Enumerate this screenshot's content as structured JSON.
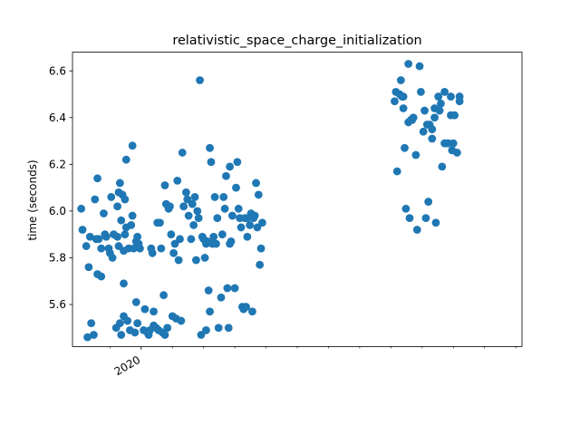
{
  "chart_data": {
    "type": "scatter",
    "title": "relativistic_space_charge_initialization",
    "xlabel": "",
    "ylabel": "time (seconds)",
    "x_major_ticks": [
      {
        "x": 2020.0,
        "label": "2020"
      }
    ],
    "x_minor_ticks": [
      2019.75,
      2020.25,
      2020.5,
      2020.75,
      2021.0,
      2021.25,
      2021.5,
      2021.75,
      2022.0,
      2022.25,
      2022.5,
      2022.75,
      2023.0
    ],
    "xlim": [
      2019.45,
      2023.05
    ],
    "ylim": [
      5.42,
      6.68
    ],
    "yticks": [
      5.6,
      5.8,
      6.0,
      6.2,
      6.4,
      6.6
    ],
    "ytick_labels": [
      "5.6",
      "5.8",
      "6.0",
      "6.2",
      "6.4",
      "6.6"
    ],
    "marker_color": "#1f77b4",
    "grid": false,
    "points": [
      [
        2019.52,
        6.01
      ],
      [
        2019.53,
        5.92
      ],
      [
        2019.56,
        5.85
      ],
      [
        2019.57,
        5.46
      ],
      [
        2019.58,
        5.76
      ],
      [
        2019.59,
        5.89
      ],
      [
        2019.6,
        5.52
      ],
      [
        2019.62,
        5.47
      ],
      [
        2019.63,
        6.05
      ],
      [
        2019.64,
        5.88
      ],
      [
        2019.65,
        5.73
      ],
      [
        2019.65,
        6.14
      ],
      [
        2019.66,
        5.88
      ],
      [
        2019.68,
        5.84
      ],
      [
        2019.68,
        5.72
      ],
      [
        2019.7,
        5.99
      ],
      [
        2019.71,
        5.9
      ],
      [
        2019.72,
        5.89
      ],
      [
        2019.74,
        5.84
      ],
      [
        2019.75,
        5.82
      ],
      [
        2019.76,
        6.06
      ],
      [
        2019.77,
        5.8
      ],
      [
        2019.78,
        5.9
      ],
      [
        2019.8,
        5.5
      ],
      [
        2019.81,
        6.02
      ],
      [
        2019.81,
        5.89
      ],
      [
        2019.82,
        6.08
      ],
      [
        2019.82,
        5.85
      ],
      [
        2019.83,
        5.52
      ],
      [
        2019.83,
        6.12
      ],
      [
        2019.84,
        5.47
      ],
      [
        2019.84,
        5.96
      ],
      [
        2019.85,
        6.07
      ],
      [
        2019.86,
        5.83
      ],
      [
        2019.86,
        5.55
      ],
      [
        2019.86,
        5.69
      ],
      [
        2019.87,
        6.05
      ],
      [
        2019.87,
        5.9
      ],
      [
        2019.88,
        6.22
      ],
      [
        2019.88,
        5.93
      ],
      [
        2019.89,
        5.53
      ],
      [
        2019.9,
        5.84
      ],
      [
        2019.91,
        5.49
      ],
      [
        2019.92,
        5.94
      ],
      [
        2019.93,
        6.28
      ],
      [
        2019.93,
        5.98
      ],
      [
        2019.94,
        5.84
      ],
      [
        2019.95,
        5.48
      ],
      [
        2019.96,
        5.61
      ],
      [
        2019.96,
        5.87
      ],
      [
        2019.97,
        5.52
      ],
      [
        2019.97,
        5.89
      ],
      [
        2019.98,
        5.86
      ],
      [
        2019.99,
        5.84
      ],
      [
        2020.02,
        5.49
      ],
      [
        2020.03,
        5.58
      ],
      [
        2020.05,
        5.48
      ],
      [
        2020.06,
        5.47
      ],
      [
        2020.07,
        5.49
      ],
      [
        2020.08,
        5.84
      ],
      [
        2020.09,
        5.82
      ],
      [
        2020.1,
        5.51
      ],
      [
        2020.1,
        5.57
      ],
      [
        2020.12,
        5.5
      ],
      [
        2020.13,
        5.95
      ],
      [
        2020.14,
        5.49
      ],
      [
        2020.15,
        5.95
      ],
      [
        2020.16,
        5.84
      ],
      [
        2020.17,
        5.48
      ],
      [
        2020.18,
        5.64
      ],
      [
        2020.19,
        6.11
      ],
      [
        2020.19,
        5.47
      ],
      [
        2020.2,
        6.03
      ],
      [
        2020.21,
        5.5
      ],
      [
        2020.22,
        6.01
      ],
      [
        2020.23,
        6.02
      ],
      [
        2020.24,
        5.9
      ],
      [
        2020.25,
        5.55
      ],
      [
        2020.26,
        5.82
      ],
      [
        2020.27,
        5.86
      ],
      [
        2020.28,
        5.54
      ],
      [
        2020.29,
        6.13
      ],
      [
        2020.3,
        5.79
      ],
      [
        2020.31,
        5.88
      ],
      [
        2020.32,
        5.53
      ],
      [
        2020.33,
        6.25
      ],
      [
        2020.34,
        6.02
      ],
      [
        2020.36,
        6.08
      ],
      [
        2020.37,
        6.05
      ],
      [
        2020.38,
        5.98
      ],
      [
        2020.4,
        5.88
      ],
      [
        2020.41,
        6.03
      ],
      [
        2020.42,
        5.94
      ],
      [
        2020.43,
        6.06
      ],
      [
        2020.44,
        5.79
      ],
      [
        2020.45,
        6.0
      ],
      [
        2020.46,
        5.97
      ],
      [
        2020.47,
        6.56
      ],
      [
        2020.48,
        5.47
      ],
      [
        2020.49,
        5.89
      ],
      [
        2020.5,
        5.88
      ],
      [
        2020.51,
        5.8
      ],
      [
        2020.52,
        5.86
      ],
      [
        2020.52,
        5.49
      ],
      [
        2020.53,
        5.87
      ],
      [
        2020.54,
        5.66
      ],
      [
        2020.55,
        6.27
      ],
      [
        2020.55,
        5.57
      ],
      [
        2020.56,
        6.21
      ],
      [
        2020.57,
        5.86
      ],
      [
        2020.58,
        5.89
      ],
      [
        2020.59,
        6.06
      ],
      [
        2020.6,
        5.86
      ],
      [
        2020.61,
        5.97
      ],
      [
        2020.62,
        5.5
      ],
      [
        2020.64,
        5.63
      ],
      [
        2020.65,
        5.9
      ],
      [
        2020.66,
        6.06
      ],
      [
        2020.67,
        6.01
      ],
      [
        2020.68,
        6.15
      ],
      [
        2020.69,
        5.67
      ],
      [
        2020.7,
        5.5
      ],
      [
        2020.71,
        6.19
      ],
      [
        2020.71,
        5.86
      ],
      [
        2020.72,
        5.87
      ],
      [
        2020.73,
        5.98
      ],
      [
        2020.75,
        5.67
      ],
      [
        2020.76,
        6.1
      ],
      [
        2020.77,
        6.21
      ],
      [
        2020.78,
        6.01
      ],
      [
        2020.79,
        5.97
      ],
      [
        2020.8,
        5.93
      ],
      [
        2020.81,
        5.59
      ],
      [
        2020.82,
        5.58
      ],
      [
        2020.83,
        5.97
      ],
      [
        2020.84,
        5.59
      ],
      [
        2020.85,
        5.97
      ],
      [
        2020.85,
        5.89
      ],
      [
        2020.87,
        5.94
      ],
      [
        2020.88,
        5.99
      ],
      [
        2020.89,
        5.57
      ],
      [
        2020.9,
        5.97
      ],
      [
        2020.91,
        5.98
      ],
      [
        2020.92,
        6.12
      ],
      [
        2020.93,
        5.93
      ],
      [
        2020.94,
        6.07
      ],
      [
        2020.95,
        5.77
      ],
      [
        2020.96,
        5.84
      ],
      [
        2020.97,
        5.95
      ],
      [
        2022.03,
        6.47
      ],
      [
        2022.04,
        6.51
      ],
      [
        2022.05,
        6.17
      ],
      [
        2022.07,
        6.5
      ],
      [
        2022.08,
        6.56
      ],
      [
        2022.09,
        6.49
      ],
      [
        2022.1,
        6.44
      ],
      [
        2022.1,
        6.49
      ],
      [
        2022.11,
        6.27
      ],
      [
        2022.12,
        6.01
      ],
      [
        2022.14,
        6.63
      ],
      [
        2022.14,
        6.38
      ],
      [
        2022.15,
        5.97
      ],
      [
        2022.16,
        6.39
      ],
      [
        2022.17,
        6.39
      ],
      [
        2022.18,
        6.4
      ],
      [
        2022.2,
        6.24
      ],
      [
        2022.21,
        5.92
      ],
      [
        2022.23,
        6.62
      ],
      [
        2022.24,
        6.51
      ],
      [
        2022.26,
        6.34
      ],
      [
        2022.27,
        6.43
      ],
      [
        2022.28,
        5.97
      ],
      [
        2022.29,
        6.37
      ],
      [
        2022.3,
        6.04
      ],
      [
        2022.31,
        6.37
      ],
      [
        2022.33,
        6.31
      ],
      [
        2022.33,
        6.35
      ],
      [
        2022.35,
        6.44
      ],
      [
        2022.35,
        6.4
      ],
      [
        2022.36,
        5.95
      ],
      [
        2022.38,
        6.49
      ],
      [
        2022.39,
        6.43
      ],
      [
        2022.4,
        6.46
      ],
      [
        2022.41,
        6.19
      ],
      [
        2022.43,
        6.51
      ],
      [
        2022.43,
        6.29
      ],
      [
        2022.45,
        6.29
      ],
      [
        2022.46,
        6.29
      ],
      [
        2022.48,
        6.49
      ],
      [
        2022.48,
        6.41
      ],
      [
        2022.49,
        6.26
      ],
      [
        2022.5,
        6.29
      ],
      [
        2022.51,
        6.41
      ],
      [
        2022.53,
        6.25
      ],
      [
        2022.55,
        6.49
      ],
      [
        2022.55,
        6.47
      ]
    ]
  }
}
